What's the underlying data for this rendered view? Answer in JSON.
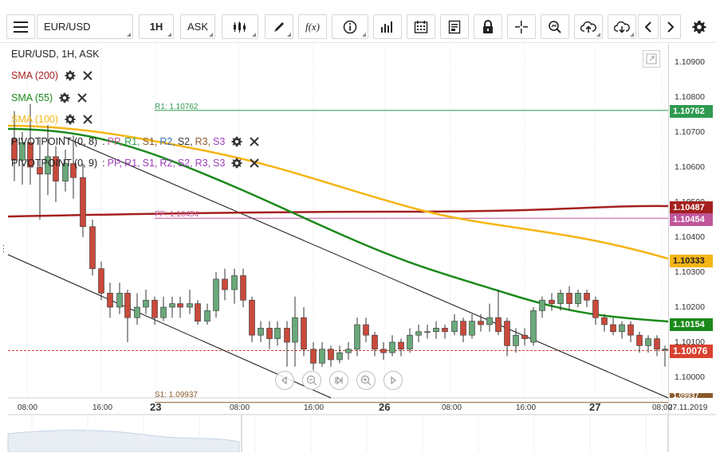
{
  "toolbar": {
    "symbol": "EUR/USD",
    "timeframe": "1H",
    "price_type": "ASK",
    "fx_label": "f(x)"
  },
  "legend": {
    "header": "EUR/USD, 1H, ASK",
    "sma200": "SMA (200)",
    "sma55": "SMA (55)",
    "sma100": "SMA (100)",
    "pivot1_name": "PIVOTPOINT (0, 8)",
    "pivot2_name": "PIVOTPOINT (0, 9)",
    "pivot_colon": ":",
    "pivot_items": [
      "PP,",
      "R1,",
      "S1,",
      "R2,",
      "S2,",
      "R3,",
      "S3"
    ]
  },
  "levels": {
    "r1_label": "R1: 1.10762",
    "pp_label": "PP: 1.10454",
    "s1_label": "S1: 1.09937"
  },
  "price_axis": {
    "labels": [
      "1.10900",
      "1.10800",
      "1.10700",
      "1.10600",
      "1.10500",
      "1.10400",
      "1.10300",
      "1.10200",
      "1.10100",
      "1.10000"
    ],
    "tags": {
      "r1": "1.10762",
      "sma200": "1.10487",
      "pp": "1.10454",
      "sma100": "1.10333",
      "sma55": "1.10154",
      "current": "1.10076",
      "s1": "1.09937"
    }
  },
  "time_axis": {
    "labels": [
      "08:00",
      "16:00",
      "23",
      "08:00",
      "16:00",
      "26",
      "08:00",
      "16:00",
      "27",
      "08:00",
      "27.11.2019"
    ]
  },
  "colors": {
    "bull": "#6aa87a",
    "bear": "#c94a3c",
    "sma200": "#a5201f",
    "sma55": "#1a8a1a",
    "sma100": "#f5b514",
    "r1": "#2e9a4f",
    "pp": "#c0569b",
    "s1": "#8b5a2b",
    "current": "#d9412f",
    "trend": "#111111"
  },
  "chart_data": {
    "type": "candlestick",
    "title": "EUR/USD, 1H, ASK",
    "ylim": [
      1.0995,
      1.1095
    ],
    "levels": {
      "R1": 1.10762,
      "PP": 1.10454,
      "S1": 1.09937
    },
    "series": [
      {
        "name": "SMA (200)",
        "end_value": 1.10487
      },
      {
        "name": "SMA (55)",
        "end_value": 1.10154
      },
      {
        "name": "SMA (100)",
        "end_value": 1.10333
      }
    ],
    "last_price": 1.10076
  }
}
